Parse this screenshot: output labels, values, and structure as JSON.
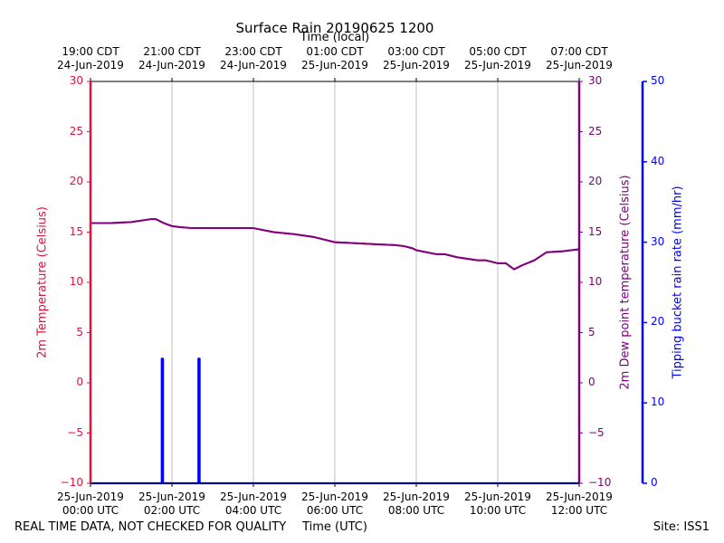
{
  "chart_data": {
    "type": "line",
    "title": "Surface Rain 20190625 1200",
    "top_axis_label": "Time (local)",
    "xlabel": "Time (UTC)",
    "footer_left": "REAL TIME DATA, NOT CHECKED FOR QUALITY",
    "footer_right": "Site: ISS1",
    "x_range_hours": [
      0,
      12
    ],
    "bottom_ticks": [
      {
        "hour": 0,
        "line1": "25-Jun-2019",
        "line2": "00:00 UTC"
      },
      {
        "hour": 2,
        "line1": "25-Jun-2019",
        "line2": "02:00 UTC"
      },
      {
        "hour": 4,
        "line1": "25-Jun-2019",
        "line2": "04:00 UTC"
      },
      {
        "hour": 6,
        "line1": "25-Jun-2019",
        "line2": "06:00 UTC"
      },
      {
        "hour": 8,
        "line1": "25-Jun-2019",
        "line2": "08:00 UTC"
      },
      {
        "hour": 10,
        "line1": "25-Jun-2019",
        "line2": "10:00 UTC"
      },
      {
        "hour": 12,
        "line1": "25-Jun-2019",
        "line2": "12:00 UTC"
      }
    ],
    "top_ticks": [
      {
        "hour": 0,
        "line1": "19:00 CDT",
        "line2": "24-Jun-2019"
      },
      {
        "hour": 2,
        "line1": "21:00 CDT",
        "line2": "24-Jun-2019"
      },
      {
        "hour": 4,
        "line1": "23:00 CDT",
        "line2": "24-Jun-2019"
      },
      {
        "hour": 6,
        "line1": "01:00 CDT",
        "line2": "25-Jun-2019"
      },
      {
        "hour": 8,
        "line1": "03:00 CDT",
        "line2": "25-Jun-2019"
      },
      {
        "hour": 10,
        "line1": "05:00 CDT",
        "line2": "25-Jun-2019"
      },
      {
        "hour": 12,
        "line1": "07:00 CDT",
        "line2": "25-Jun-2019"
      }
    ],
    "y_left": {
      "label": "2m Temperature (Celsius)",
      "range": [
        -10,
        30
      ],
      "ticks": [
        -10,
        -5,
        0,
        5,
        10,
        15,
        20,
        25,
        30
      ],
      "color": "#dc143c"
    },
    "y_right1": {
      "label": "2m Dew point temperature (Celsius)",
      "range": [
        -10,
        30
      ],
      "ticks": [
        -10,
        -5,
        0,
        5,
        10,
        15,
        20,
        25,
        30
      ],
      "color": "#800080"
    },
    "y_right2": {
      "label": "Tipping bucket rain rate (mm/hr)",
      "range": [
        0,
        50
      ],
      "ticks": [
        0,
        10,
        20,
        30,
        40,
        50
      ],
      "color": "#0000ff"
    },
    "series": [
      {
        "name": "2m Temperature",
        "axis": "left",
        "color": "#dc143c",
        "x": [
          0,
          0.5,
          1.0,
          1.5,
          1.6,
          1.8,
          2.0,
          2.2,
          2.5,
          2.9,
          3.3,
          3.8,
          4.0,
          4.5,
          5.0,
          5.5,
          6.0,
          6.5,
          7.0,
          7.5,
          7.7,
          7.9,
          8.0,
          8.5,
          8.7,
          8.8,
          9.0,
          9.5,
          9.7,
          10.0,
          10.2,
          10.4,
          10.6,
          10.9,
          11.2,
          11.6,
          12.0
        ],
        "y": [
          15.9,
          15.9,
          16.0,
          16.3,
          16.3,
          15.9,
          15.6,
          15.5,
          15.4,
          15.4,
          15.4,
          15.4,
          15.4,
          15.0,
          14.8,
          14.5,
          14.0,
          13.9,
          13.8,
          13.7,
          13.6,
          13.4,
          13.2,
          12.8,
          12.8,
          12.7,
          12.5,
          12.2,
          12.2,
          11.9,
          11.9,
          11.3,
          11.7,
          12.2,
          13.0,
          13.1,
          13.3
        ]
      },
      {
        "name": "2m Dew point temperature",
        "axis": "right1",
        "color": "#800080",
        "x": [
          0,
          0.5,
          1.0,
          1.5,
          1.6,
          1.8,
          2.0,
          2.2,
          2.5,
          2.9,
          3.3,
          3.8,
          4.0,
          4.5,
          5.0,
          5.5,
          6.0,
          6.5,
          7.0,
          7.5,
          7.7,
          7.9,
          8.0,
          8.5,
          8.7,
          8.8,
          9.0,
          9.5,
          9.7,
          10.0,
          10.2,
          10.4,
          10.6,
          10.9,
          11.2,
          11.6,
          12.0
        ],
        "y": [
          15.9,
          15.9,
          16.0,
          16.3,
          16.3,
          15.9,
          15.6,
          15.5,
          15.4,
          15.4,
          15.4,
          15.4,
          15.4,
          15.0,
          14.8,
          14.5,
          14.0,
          13.9,
          13.8,
          13.7,
          13.6,
          13.4,
          13.2,
          12.8,
          12.8,
          12.7,
          12.5,
          12.2,
          12.2,
          11.9,
          11.9,
          11.3,
          11.7,
          12.2,
          13.0,
          13.1,
          13.3
        ]
      },
      {
        "name": "Tipping bucket rain rate",
        "axis": "right2",
        "color": "#0000ff",
        "x": [
          0,
          1.75,
          1.75,
          1.78,
          1.78,
          2.65,
          2.65,
          2.68,
          2.68,
          12.0
        ],
        "y": [
          0,
          0,
          15.5,
          15.5,
          0,
          0,
          15.5,
          15.5,
          0,
          0
        ]
      }
    ]
  }
}
